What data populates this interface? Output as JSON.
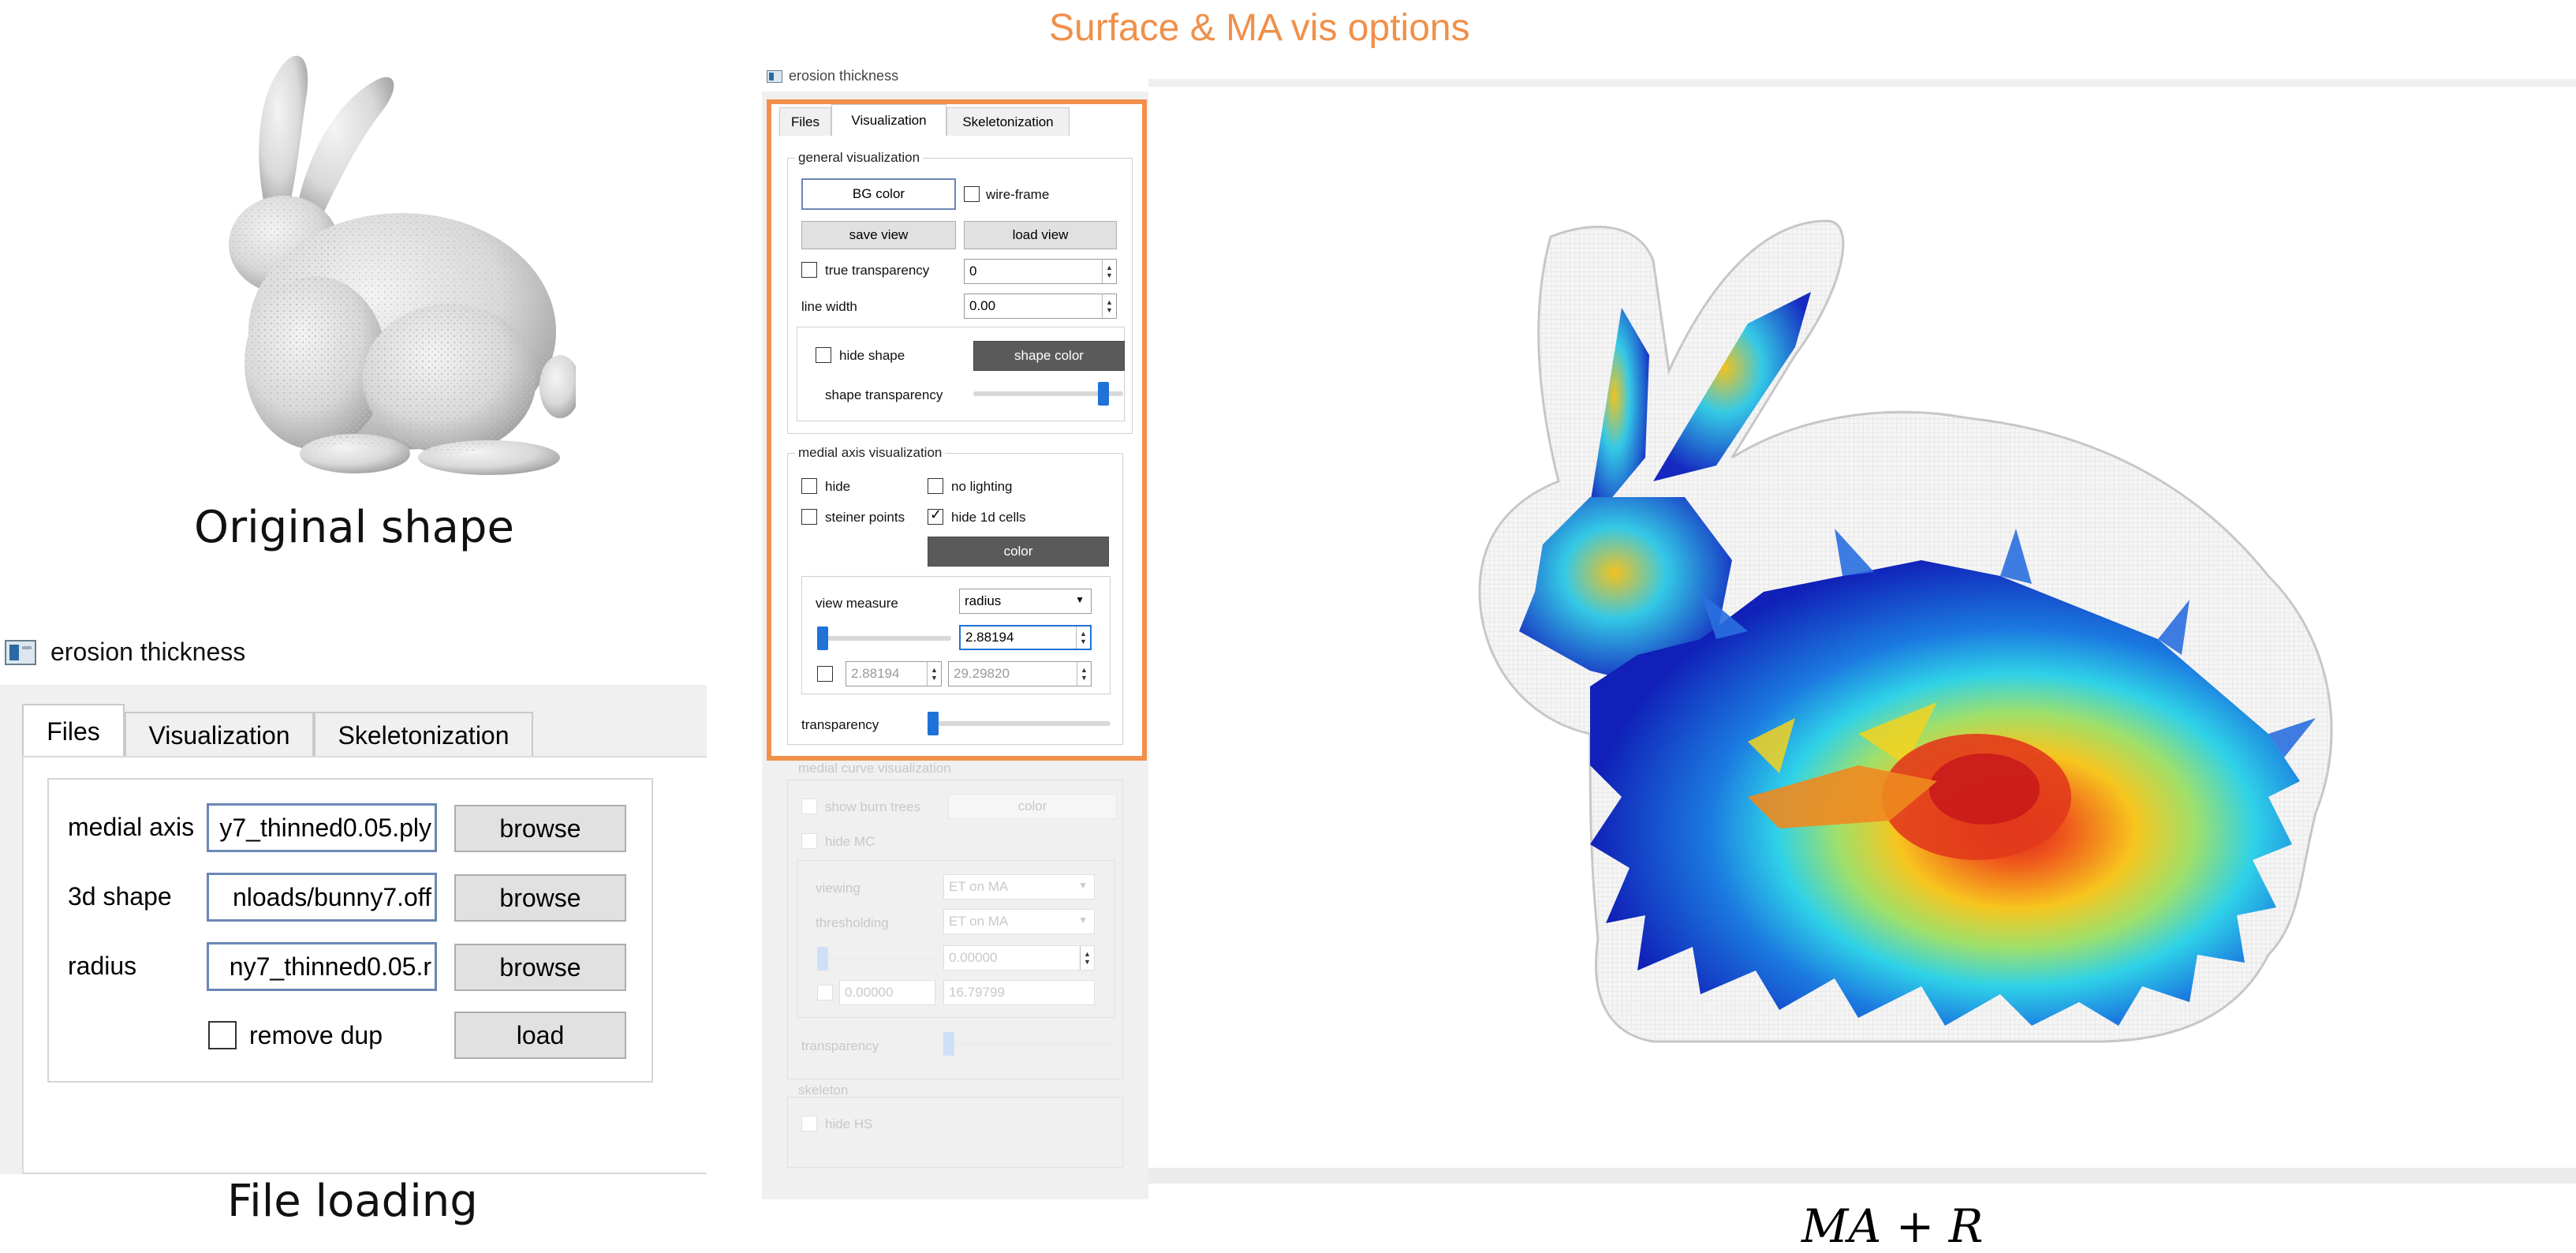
{
  "header": {
    "title": "Surface & MA vis options",
    "title_color": "#F0904A"
  },
  "captions": {
    "original": "Original shape",
    "file_loading": "File loading",
    "render": "MA + R"
  },
  "file_window": {
    "title": "erosion thickness",
    "tabs": [
      "Files",
      "Visualization",
      "Skeletonization"
    ],
    "active_tab": "Files",
    "rows": [
      {
        "label": "medial axis",
        "value": "y7_thinned0.05.ply",
        "button": "browse"
      },
      {
        "label": "3d shape",
        "value": "nloads/bunny7.off",
        "button": "browse"
      },
      {
        "label": "radius",
        "value": "ny7_thinned0.05.r",
        "button": "browse"
      }
    ],
    "remove_dup": "remove dup",
    "load": "load"
  },
  "vis_window": {
    "title": "erosion thickness",
    "highlight_color": "#F0904A",
    "tabs": [
      "Files",
      "Visualization",
      "Skeletonization"
    ],
    "active_tab": "Visualization",
    "general": {
      "title": "general visualization",
      "bg_color": "BG color",
      "wire_frame": "wire-frame",
      "save_view": "save view",
      "load_view": "load view",
      "true_transparency": "true transparency",
      "true_transparency_value": "0",
      "line_width": "line width",
      "line_width_value": "0.00",
      "hide_shape": "hide shape",
      "shape_color": "shape color",
      "shape_transparency": "shape transparency",
      "shape_transparency_level": 0.9
    },
    "medial": {
      "title": "medial axis visualization",
      "hide": "hide",
      "no_lighting": "no lighting",
      "steiner_points": "steiner points",
      "hide_1d_cells": "hide 1d cells",
      "hide_1d_cells_checked": true,
      "color": "color",
      "view_measure": "view measure",
      "measure_option": "radius",
      "measure_value": "2.88194",
      "range_min": "2.88194",
      "range_max": "29.29820",
      "transparency": "transparency"
    },
    "curve": {
      "title": "medial curve visualization",
      "show_burn_trees": "show burn trees",
      "color": "color",
      "hide_mc": "hide MC",
      "viewing": "viewing",
      "viewing_option": "ET on MA",
      "thresholding": "thresholding",
      "thresholding_option": "ET on MA",
      "value": "0.00000",
      "range_min": "0.00000",
      "range_max": "16.79799",
      "transparency": "transparency"
    },
    "skeleton": {
      "title": "skeleton",
      "hide_hs": "hide HS"
    }
  },
  "colors": {
    "accent": "#F0904A",
    "selection_border": "#6B87B5",
    "slider_thumb": "#1E72D8",
    "dark_button": "#5A5A5A"
  }
}
